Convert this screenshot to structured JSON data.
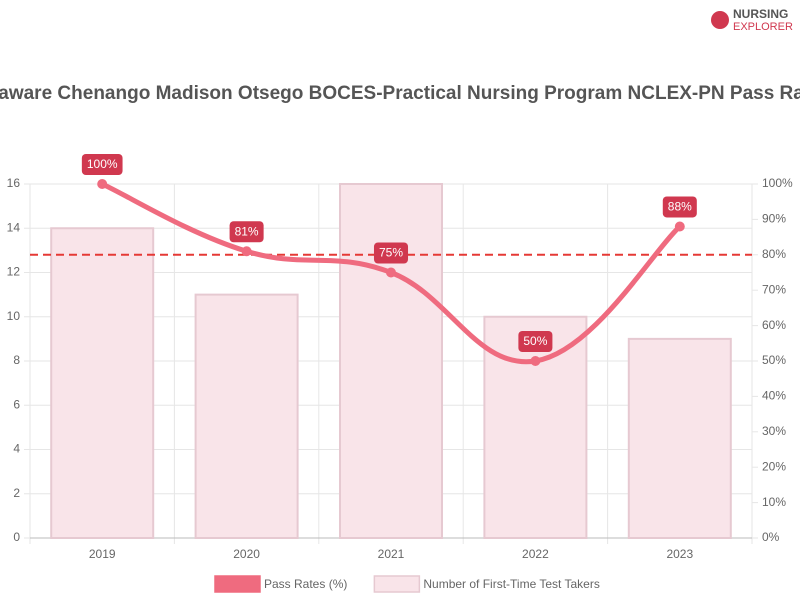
{
  "logo": {
    "line1": "NURSING",
    "line2": "EXPLORER"
  },
  "chart_data": {
    "type": "combo",
    "title": "Delaware Chenango Madison Otsego BOCES-Practical Nursing Program NCLEX-PN Pass Rates",
    "categories": [
      "2019",
      "2020",
      "2021",
      "2022",
      "2023"
    ],
    "series": [
      {
        "name": "Pass Rates (%)",
        "type": "line",
        "axis": "y2",
        "color": "#ef6b7f",
        "label_color": "#d0384f",
        "values": [
          100,
          81,
          75,
          50,
          88
        ],
        "value_labels": [
          "100%",
          "81%",
          "75%",
          "50%",
          "88%"
        ]
      },
      {
        "name": "Number of First-Time Test Takers",
        "type": "bar",
        "axis": "y",
        "color": "#f9e4e9",
        "edge_color": "#e6c9d1",
        "values": [
          14,
          11,
          16,
          10,
          9
        ]
      }
    ],
    "reference_line": {
      "value": 80,
      "axis": "y2",
      "color": "#e53935"
    },
    "ylim": [
      0,
      16
    ],
    "yticks": [
      0,
      2,
      4,
      6,
      8,
      10,
      12,
      14,
      16
    ],
    "y2lim": [
      0,
      100
    ],
    "y2ticks": [
      {
        "value": 0,
        "label": "0%"
      },
      {
        "value": 10,
        "label": "10%"
      },
      {
        "value": 20,
        "label": "20%"
      },
      {
        "value": 30,
        "label": "30%"
      },
      {
        "value": 40,
        "label": "40%"
      },
      {
        "value": 50,
        "label": "50%"
      },
      {
        "value": 60,
        "label": "60%"
      },
      {
        "value": 70,
        "label": "70%"
      },
      {
        "value": 80,
        "label": "80%"
      },
      {
        "value": 90,
        "label": "90%"
      },
      {
        "value": 100,
        "label": "100%"
      }
    ],
    "grid": true,
    "legend": "bottom"
  }
}
